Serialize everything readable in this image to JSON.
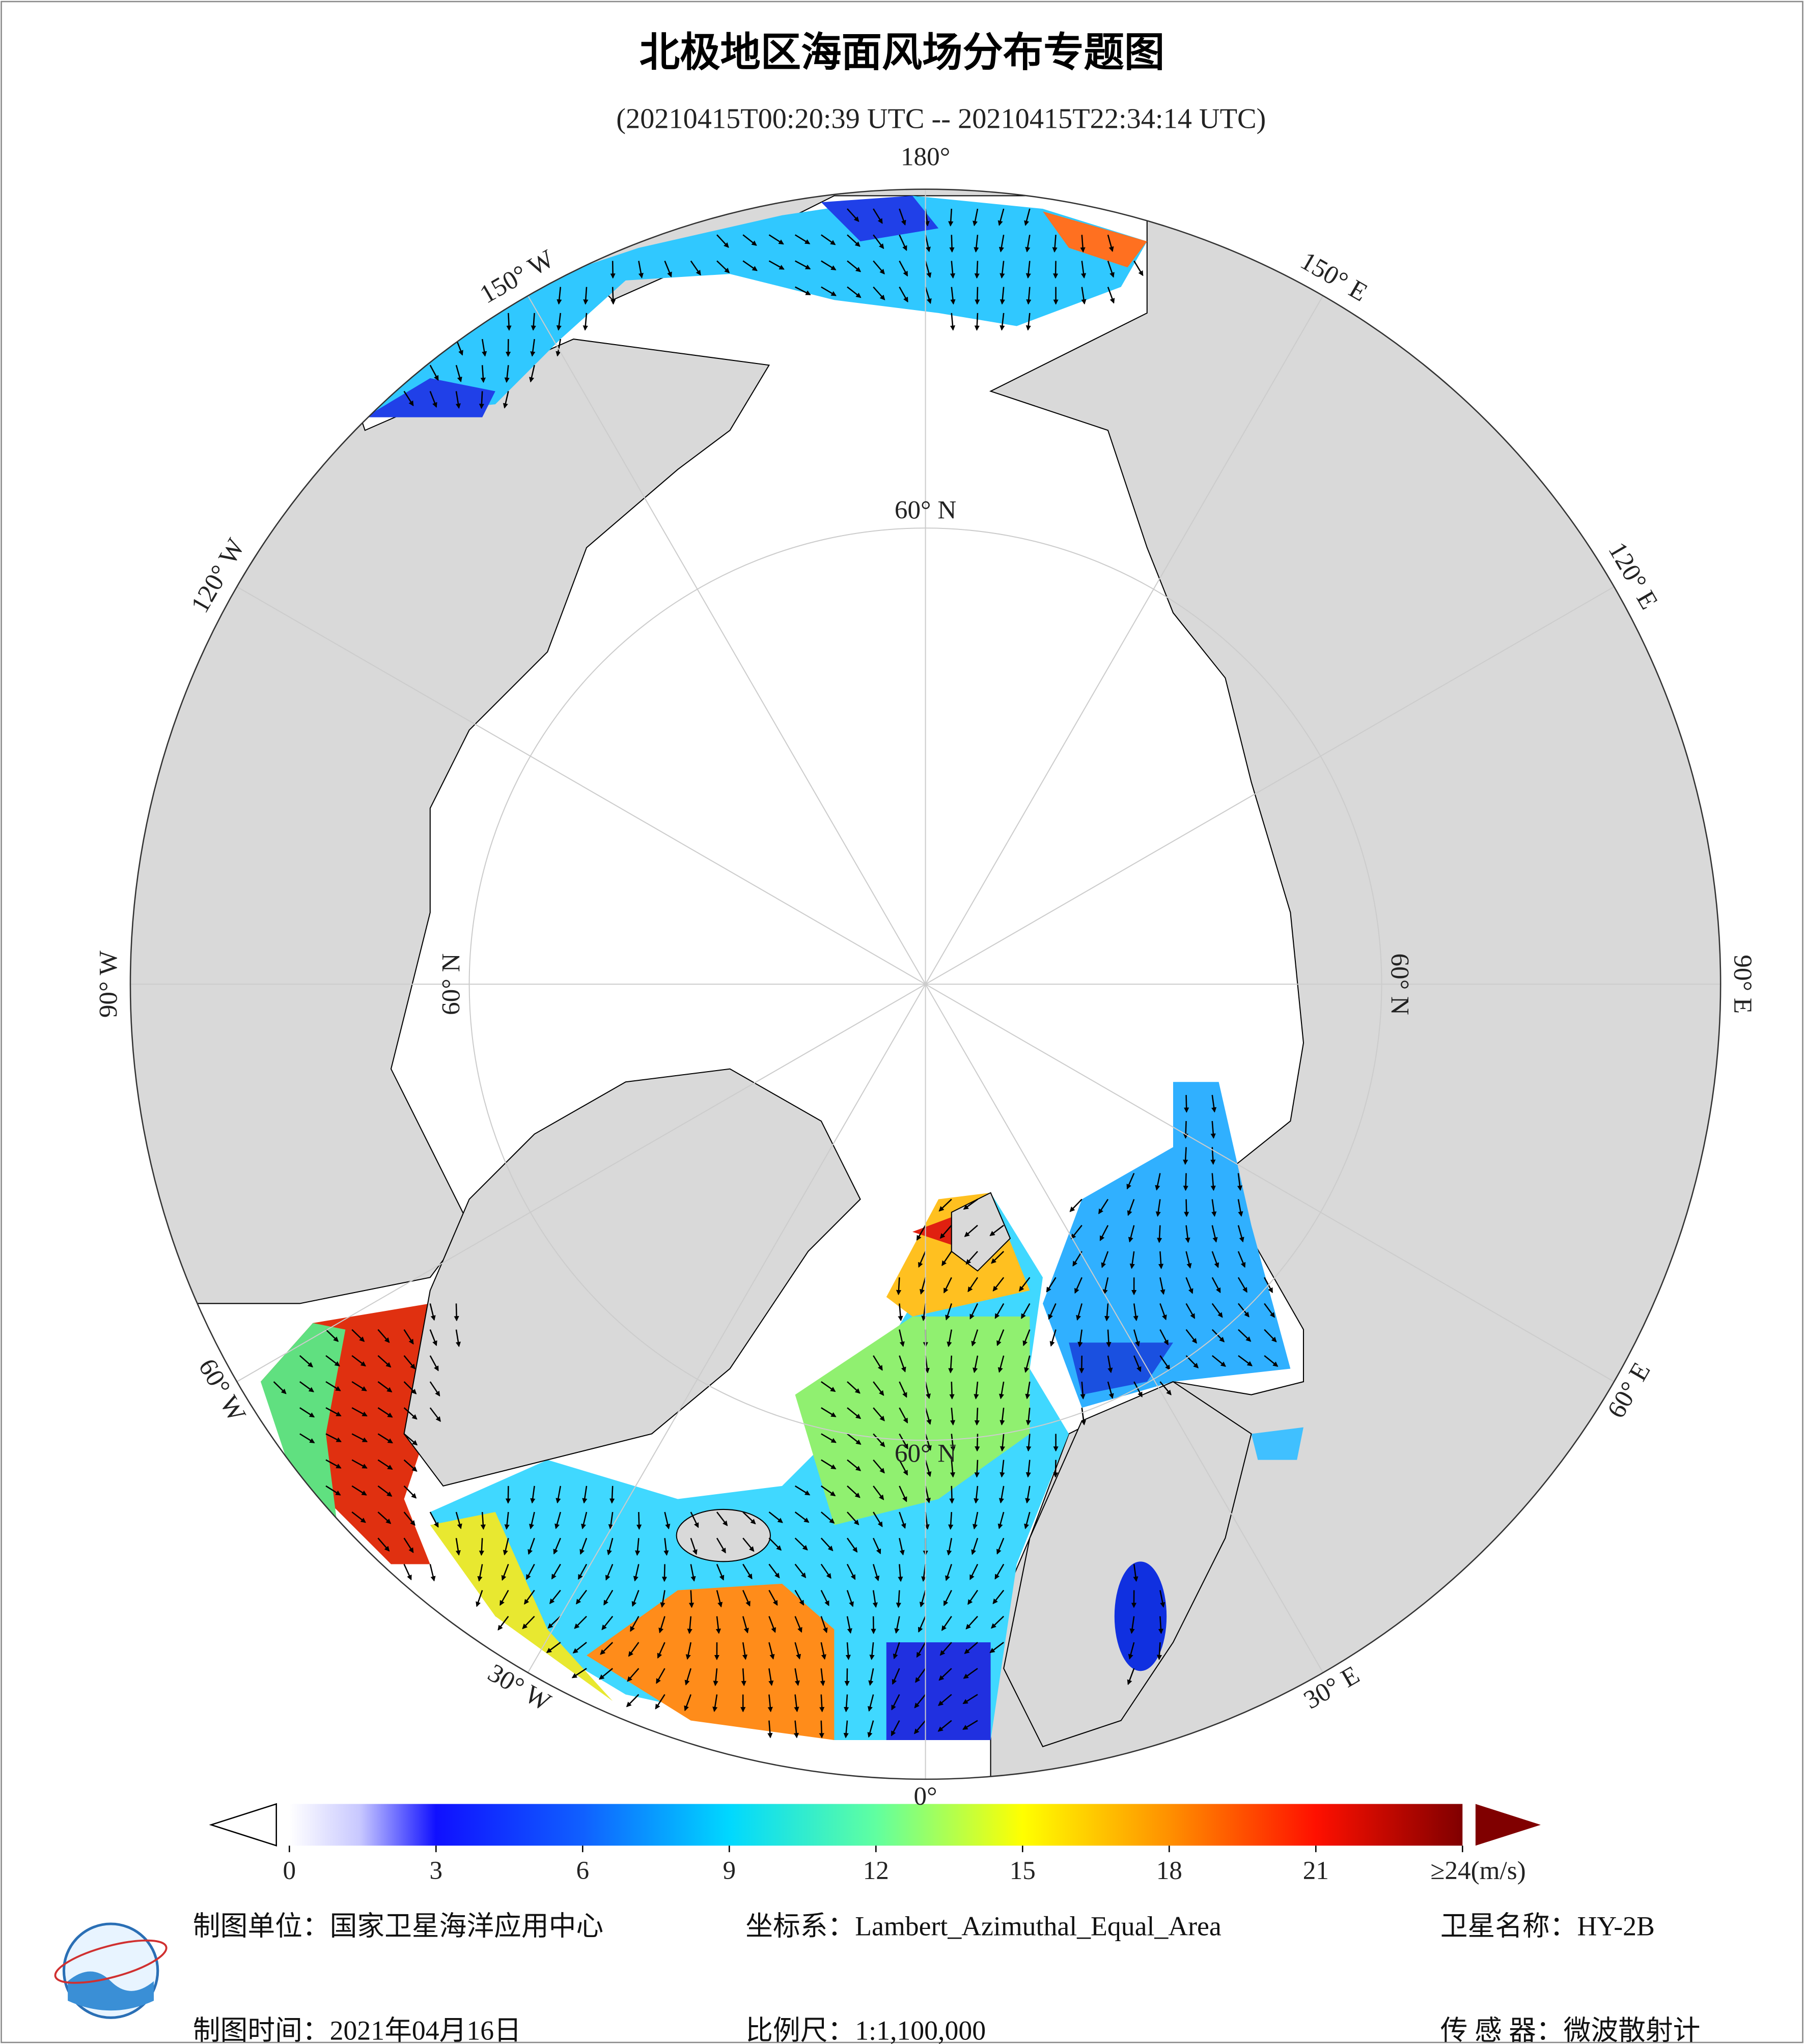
{
  "header": {
    "title": "北极地区海面风场分布专题图",
    "subtitle": "(20210415T00:20:39 UTC -- 20210415T22:34:14 UTC)"
  },
  "map": {
    "lon_labels": [
      "180°",
      "150° E",
      "120° E",
      "90° E",
      "60° E",
      "30° E",
      "0°",
      "30° W",
      "60° W",
      "90° W",
      "120° W",
      "150° W"
    ],
    "lat_label": "60° N"
  },
  "colorbar": {
    "range": [
      0,
      24
    ],
    "ticks": [
      0,
      3,
      6,
      9,
      12,
      15,
      18,
      21,
      {
        "value": 24,
        "label": "≥24(m/s)"
      }
    ]
  },
  "footer": {
    "unit": "制图单位：国家卫星海洋应用中心",
    "crs": "坐标系：Lambert_Azimuthal_Equal_Area",
    "satellite": "卫星名称：HY-2B",
    "date": "制图时间：2021年04月16日",
    "scale": "比例尺：1:1,100,000",
    "sensor": "传 感 器：微波散射计"
  }
}
